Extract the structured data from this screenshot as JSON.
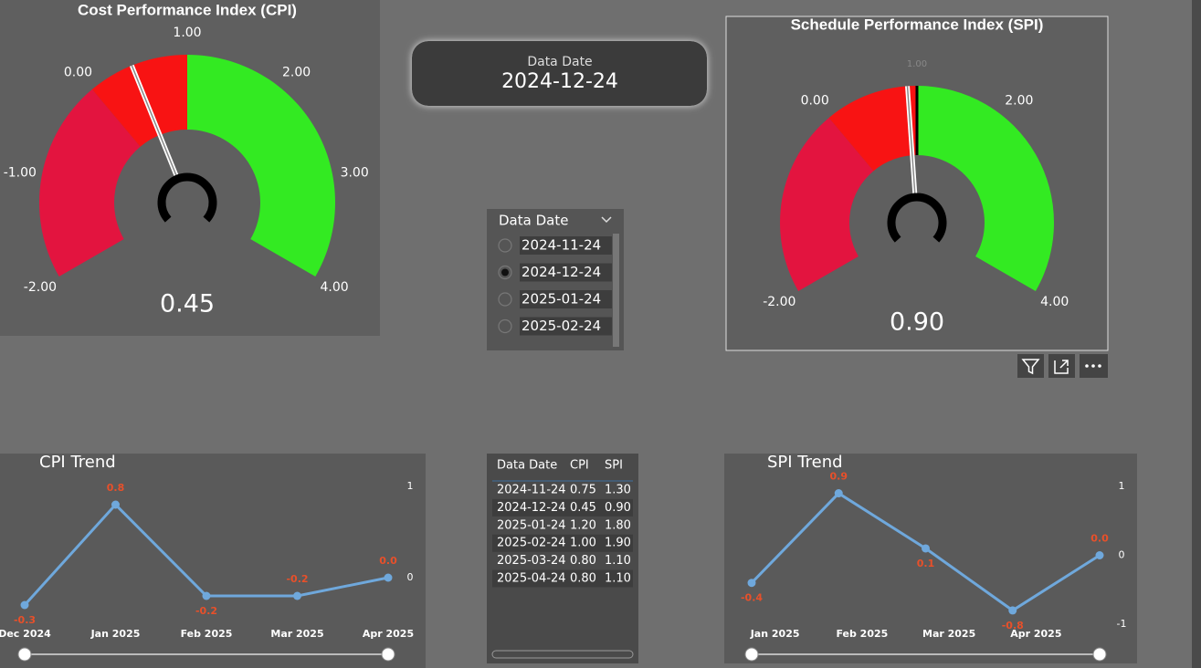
{
  "cpi_gauge": {
    "title": "Cost Performance Index (CPI)",
    "value": 0.45,
    "value_label": "0.45",
    "min": -2,
    "max": 4,
    "ticks": [
      {
        "value": -2,
        "label": "-2.00"
      },
      {
        "value": -1,
        "label": "-1.00"
      },
      {
        "value": 0,
        "label": "0.00"
      },
      {
        "value": 1,
        "label": "1.00"
      },
      {
        "value": 2,
        "label": "2.00"
      },
      {
        "value": 3,
        "label": "3.00"
      },
      {
        "value": 4,
        "label": "4.00"
      }
    ],
    "bands": [
      {
        "from": -2,
        "to": 0,
        "color": "#e3143f"
      },
      {
        "from": 0,
        "to": 1,
        "color": "#f81313"
      },
      {
        "from": 1,
        "to": 4,
        "color": "#33ea22"
      }
    ]
  },
  "spi_gauge": {
    "title": "Schedule Performance Index (SPI)",
    "value": 0.9,
    "value_label": "0.90",
    "min": -2,
    "max": 4,
    "target": 1,
    "ticks": [
      {
        "value": -2,
        "label": "-2.00"
      },
      {
        "value": 0,
        "label": "0.00"
      },
      {
        "value": 1,
        "label": "1.00"
      },
      {
        "value": 2,
        "label": "2.00"
      },
      {
        "value": 4,
        "label": "4.00"
      }
    ],
    "bands": [
      {
        "from": -2,
        "to": 0,
        "color": "#e3143f"
      },
      {
        "from": 0,
        "to": 1,
        "color": "#f81313"
      },
      {
        "from": 1,
        "to": 4,
        "color": "#33ea22"
      }
    ]
  },
  "date_card": {
    "label": "Data Date",
    "value": "2024-12-24"
  },
  "slicer": {
    "title": "Data Date",
    "options": [
      "2024-11-24",
      "2024-12-24",
      "2025-01-24",
      "2025-02-24"
    ],
    "selected": 1
  },
  "table": {
    "headers": [
      "Data Date",
      "CPI",
      "SPI"
    ],
    "rows": [
      [
        "2024-11-24",
        "0.75",
        "1.30"
      ],
      [
        "2024-12-24",
        "0.45",
        "0.90"
      ],
      [
        "2025-01-24",
        "1.20",
        "1.80"
      ],
      [
        "2025-02-24",
        "1.00",
        "1.90"
      ],
      [
        "2025-03-24",
        "0.80",
        "1.10"
      ],
      [
        "2025-04-24",
        "0.80",
        "1.10"
      ]
    ]
  },
  "cpi_trend": {
    "type": "line",
    "title": "CPI Trend",
    "categories": [
      "Dec 2024",
      "Jan 2025",
      "Feb 2025",
      "Mar 2025",
      "Apr 2025"
    ],
    "values": [
      -0.3,
      0.8,
      -0.2,
      -0.2,
      0.0
    ],
    "value_labels": [
      "-0.3",
      "0.8",
      "-0.2",
      "-0.2",
      "0.0"
    ],
    "color": "#6fa8dc",
    "ylim": [
      -0.4,
      1.1
    ],
    "yticks": [
      0,
      1
    ]
  },
  "spi_trend": {
    "type": "line",
    "title": "SPI Trend",
    "xticks": [
      "Jan 2025",
      "Feb 2025",
      "Mar 2025",
      "Apr 2025"
    ],
    "values": [
      -0.4,
      0.9,
      0.1,
      -0.8,
      0.0
    ],
    "value_labels": [
      "-0.4",
      "0.9",
      "0.1",
      "-0.8",
      "0.0"
    ],
    "color": "#6fa8dc",
    "ylim": [
      -1,
      1
    ],
    "yticks": [
      -1,
      0,
      1
    ]
  }
}
